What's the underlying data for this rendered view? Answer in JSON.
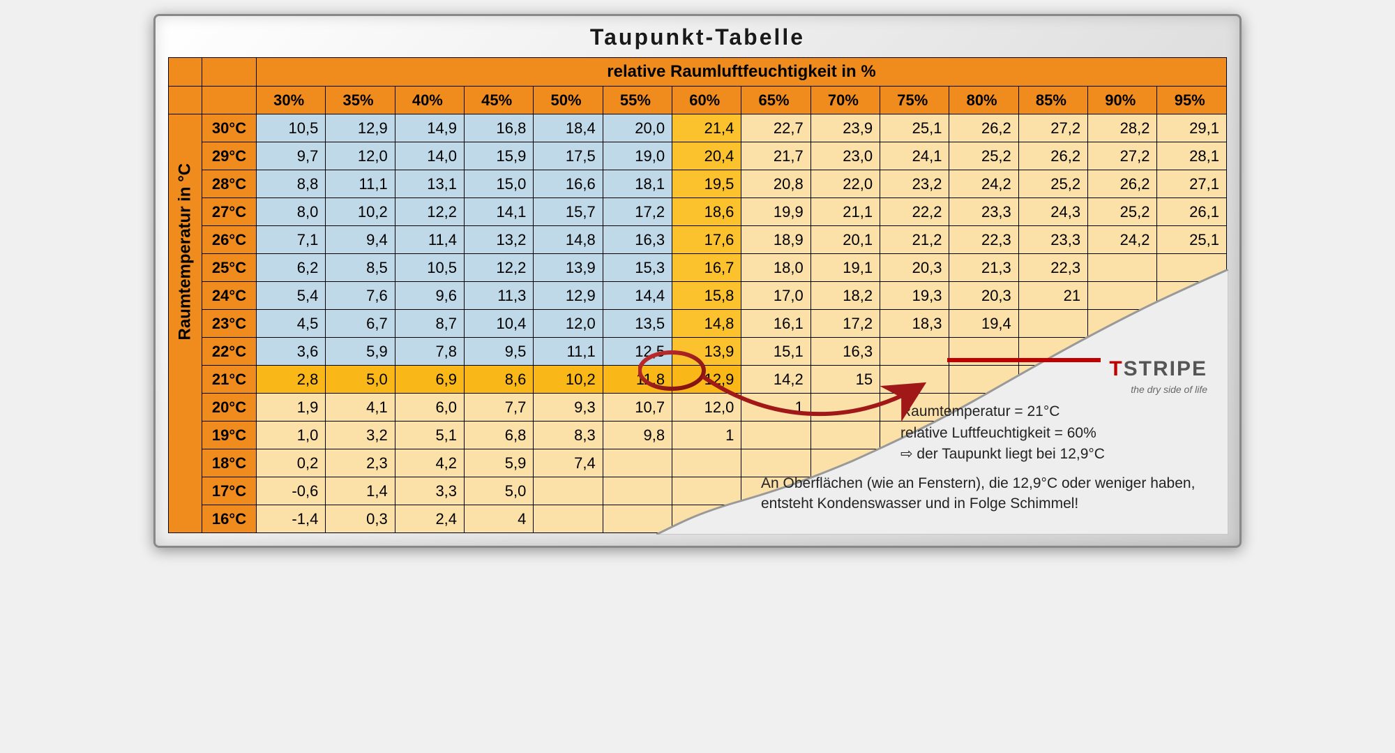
{
  "title": "Taupunkt-Tabelle",
  "headers": {
    "humidity_title": "relative Raumluftfeuchtigkeit in %",
    "temperature_title": "Raumtemperatur in °C",
    "humidity_cols": [
      "30%",
      "35%",
      "40%",
      "45%",
      "50%",
      "55%",
      "60%",
      "65%",
      "70%",
      "75%",
      "80%",
      "85%",
      "90%",
      "95%"
    ]
  },
  "row_labels": [
    "30°C",
    "29°C",
    "28°C",
    "27°C",
    "26°C",
    "25°C",
    "24°C",
    "23°C",
    "22°C",
    "21°C",
    "20°C",
    "19°C",
    "18°C",
    "17°C",
    "16°C"
  ],
  "data": [
    [
      "10,5",
      "12,9",
      "14,9",
      "16,8",
      "18,4",
      "20,0",
      "21,4",
      "22,7",
      "23,9",
      "25,1",
      "26,2",
      "27,2",
      "28,2",
      "29,1"
    ],
    [
      "9,7",
      "12,0",
      "14,0",
      "15,9",
      "17,5",
      "19,0",
      "20,4",
      "21,7",
      "23,0",
      "24,1",
      "25,2",
      "26,2",
      "27,2",
      "28,1"
    ],
    [
      "8,8",
      "11,1",
      "13,1",
      "15,0",
      "16,6",
      "18,1",
      "19,5",
      "20,8",
      "22,0",
      "23,2",
      "24,2",
      "25,2",
      "26,2",
      "27,1"
    ],
    [
      "8,0",
      "10,2",
      "12,2",
      "14,1",
      "15,7",
      "17,2",
      "18,6",
      "19,9",
      "21,1",
      "22,2",
      "23,3",
      "24,3",
      "25,2",
      "26,1"
    ],
    [
      "7,1",
      "9,4",
      "11,4",
      "13,2",
      "14,8",
      "16,3",
      "17,6",
      "18,9",
      "20,1",
      "21,2",
      "22,3",
      "23,3",
      "24,2",
      "25,1"
    ],
    [
      "6,2",
      "8,5",
      "10,5",
      "12,2",
      "13,9",
      "15,3",
      "16,7",
      "18,0",
      "19,1",
      "20,3",
      "21,3",
      "22,3",
      "",
      ""
    ],
    [
      "5,4",
      "7,6",
      "9,6",
      "11,3",
      "12,9",
      "14,4",
      "15,8",
      "17,0",
      "18,2",
      "19,3",
      "20,3",
      "21",
      "",
      ""
    ],
    [
      "4,5",
      "6,7",
      "8,7",
      "10,4",
      "12,0",
      "13,5",
      "14,8",
      "16,1",
      "17,2",
      "18,3",
      "19,4",
      "",
      "",
      ""
    ],
    [
      "3,6",
      "5,9",
      "7,8",
      "9,5",
      "11,1",
      "12,5",
      "13,9",
      "15,1",
      "16,3",
      "",
      "",
      "",
      "",
      ""
    ],
    [
      "2,8",
      "5,0",
      "6,9",
      "8,6",
      "10,2",
      "11,8",
      "12,9",
      "14,2",
      "15",
      "",
      "",
      "",
      "",
      ""
    ],
    [
      "1,9",
      "4,1",
      "6,0",
      "7,7",
      "9,3",
      "10,7",
      "12,0",
      "1",
      "",
      "",
      "",
      "",
      "",
      ""
    ],
    [
      "1,0",
      "3,2",
      "5,1",
      "6,8",
      "8,3",
      "9,8",
      "1",
      "",
      "",
      "",
      "",
      "",
      "",
      ""
    ],
    [
      "0,2",
      "2,3",
      "4,2",
      "5,9",
      "7,4",
      "",
      "",
      "",
      "",
      "",
      "",
      "",
      "",
      ""
    ],
    [
      "-0,6",
      "1,4",
      "3,3",
      "5,0",
      "",
      "",
      "",
      "",
      "",
      "",
      "",
      "",
      "",
      ""
    ],
    [
      "-1,4",
      "0,3",
      "2,4",
      "4",
      "",
      "",
      "",
      "",
      "",
      "",
      "",
      "",
      "",
      ""
    ]
  ],
  "highlight": {
    "row_index": 9,
    "col_index": 6
  },
  "colors": {
    "header": "#f08c1e",
    "blue": "#bfd9e8",
    "yellow": "#fbc22e",
    "cream": "#fbe0a8",
    "row21": "#f9b817",
    "grid": "#000000",
    "torn_paper": "#eeeeee",
    "circle": "#a01818",
    "logo_red": "#c00000",
    "logo_grey": "#555555"
  },
  "blue_cols_until_row": 8,
  "yellow_col_index": 6,
  "annotation": {
    "logo_name_pre": "T",
    "logo_name_rest": "STRIPE",
    "logo_slogan": "the dry side of life",
    "line1": "Raumtemperatur = 21°C",
    "line2": "relative Luftfeuchtigkeit = 60%",
    "line3": "⇨ der Taupunkt liegt bei 12,9°C",
    "warning": "An Oberflächen (wie an Fenstern), die 12,9°C oder weniger haben, entsteht Kondenswasser und in Folge Schimmel!"
  },
  "typography": {
    "title_fontsize": 32,
    "cell_fontsize": 22,
    "annot_fontsize": 21
  }
}
